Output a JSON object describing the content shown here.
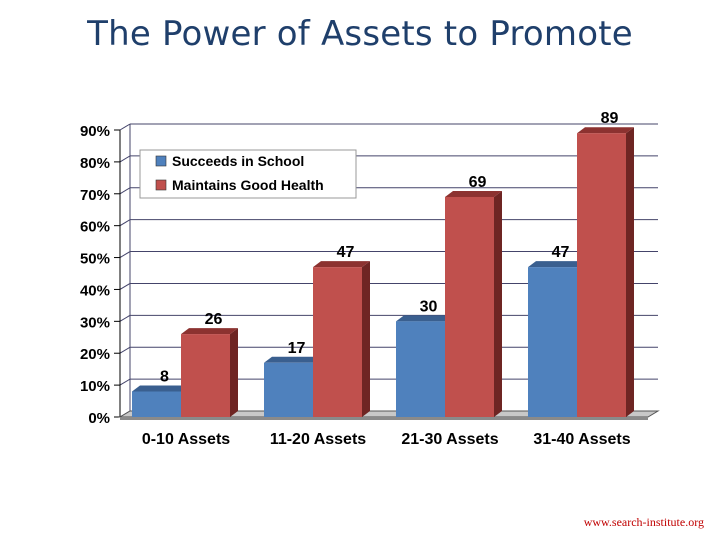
{
  "title": "The Power of Assets to Promote",
  "footer": "www.search-institute.org",
  "colors": {
    "succeeds": "#4f81bd",
    "health": "#c0504d",
    "title": "#1f3f6b",
    "footer": "#c00000"
  },
  "chart_data": {
    "type": "bar",
    "title": "",
    "xlabel": "",
    "ylabel": "",
    "ylim": [
      0,
      90
    ],
    "yticks": [
      "0%",
      "10%",
      "20%",
      "30%",
      "40%",
      "50%",
      "60%",
      "70%",
      "80%",
      "90%"
    ],
    "categories": [
      "0-10 Assets",
      "11-20 Assets",
      "21-30 Assets",
      "31-40 Assets"
    ],
    "series": [
      {
        "name": "Succeeds in School",
        "values": [
          8,
          17,
          30,
          47
        ],
        "labels": [
          "8",
          "17",
          "30",
          "47"
        ]
      },
      {
        "name": "Maintains Good Health",
        "values": [
          26,
          47,
          69,
          89
        ],
        "labels": [
          "26",
          "47",
          "69",
          "89"
        ]
      }
    ],
    "legend": "top-left",
    "grid": true
  }
}
